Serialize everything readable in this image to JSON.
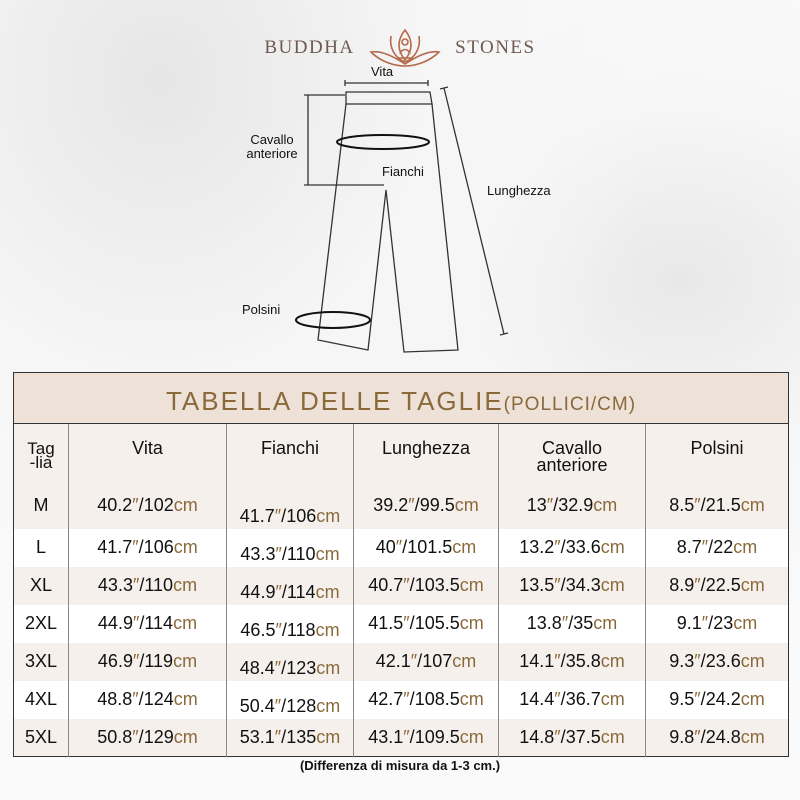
{
  "brand": {
    "left": "BUDDHA",
    "right": "STONES",
    "accent": "#b56a4a"
  },
  "diagram": {
    "labels": {
      "waist": "Vita",
      "front_rise": "Cavallo anteriore",
      "hips": "Fianchi",
      "length": "Lunghezza",
      "cuffs": "Polsini"
    }
  },
  "table": {
    "title": "TABELLA DELLE TAGLIE",
    "title_units": "(POLLICI/CM)",
    "inch_mark": "″",
    "cm_unit": "cm",
    "headers": [
      "Tag\n-lia",
      "Vita",
      "Fianchi",
      "Lunghezza",
      "Cavallo\nanteriore",
      "Polsini"
    ],
    "rows": [
      {
        "size": "M",
        "vals": [
          [
            "40.2",
            "102"
          ],
          [
            "41.7",
            "106"
          ],
          [
            "39.2",
            "99.5"
          ],
          [
            "13",
            "32.9"
          ],
          [
            "8.5",
            "21.5"
          ]
        ]
      },
      {
        "size": "L",
        "vals": [
          [
            "41.7",
            "106"
          ],
          [
            "43.3",
            "110"
          ],
          [
            "40",
            "101.5"
          ],
          [
            "13.2",
            "33.6"
          ],
          [
            "8.7",
            "22"
          ]
        ]
      },
      {
        "size": "XL",
        "vals": [
          [
            "43.3",
            "110"
          ],
          [
            "44.9",
            "114"
          ],
          [
            "40.7",
            "103.5"
          ],
          [
            "13.5",
            "34.3"
          ],
          [
            "8.9",
            "22.5"
          ]
        ]
      },
      {
        "size": "2XL",
        "vals": [
          [
            "44.9",
            "114"
          ],
          [
            "46.5",
            "118"
          ],
          [
            "41.5",
            "105.5"
          ],
          [
            "13.8",
            "35"
          ],
          [
            "9.1",
            "23"
          ]
        ]
      },
      {
        "size": "3XL",
        "vals": [
          [
            "46.9",
            "119"
          ],
          [
            "48.4",
            "123"
          ],
          [
            "42.1",
            "107"
          ],
          [
            "14.1",
            "35.8"
          ],
          [
            "9.3",
            "23.6"
          ]
        ]
      },
      {
        "size": "4XL",
        "vals": [
          [
            "48.8",
            "124"
          ],
          [
            "50.4",
            "128"
          ],
          [
            "42.7",
            "108.5"
          ],
          [
            "14.4",
            "36.7"
          ],
          [
            "9.5",
            "24.2"
          ]
        ]
      },
      {
        "size": "5XL",
        "vals": [
          [
            "50.8",
            "129"
          ],
          [
            "53.1",
            "135"
          ],
          [
            "43.1",
            "109.5"
          ],
          [
            "14.8",
            "37.5"
          ],
          [
            "9.8",
            "24.8"
          ]
        ]
      }
    ],
    "accent": "#8a6a3b",
    "header_bg": "#ede1d8"
  },
  "note": "(Differenza di misura da 1-3 cm.)"
}
